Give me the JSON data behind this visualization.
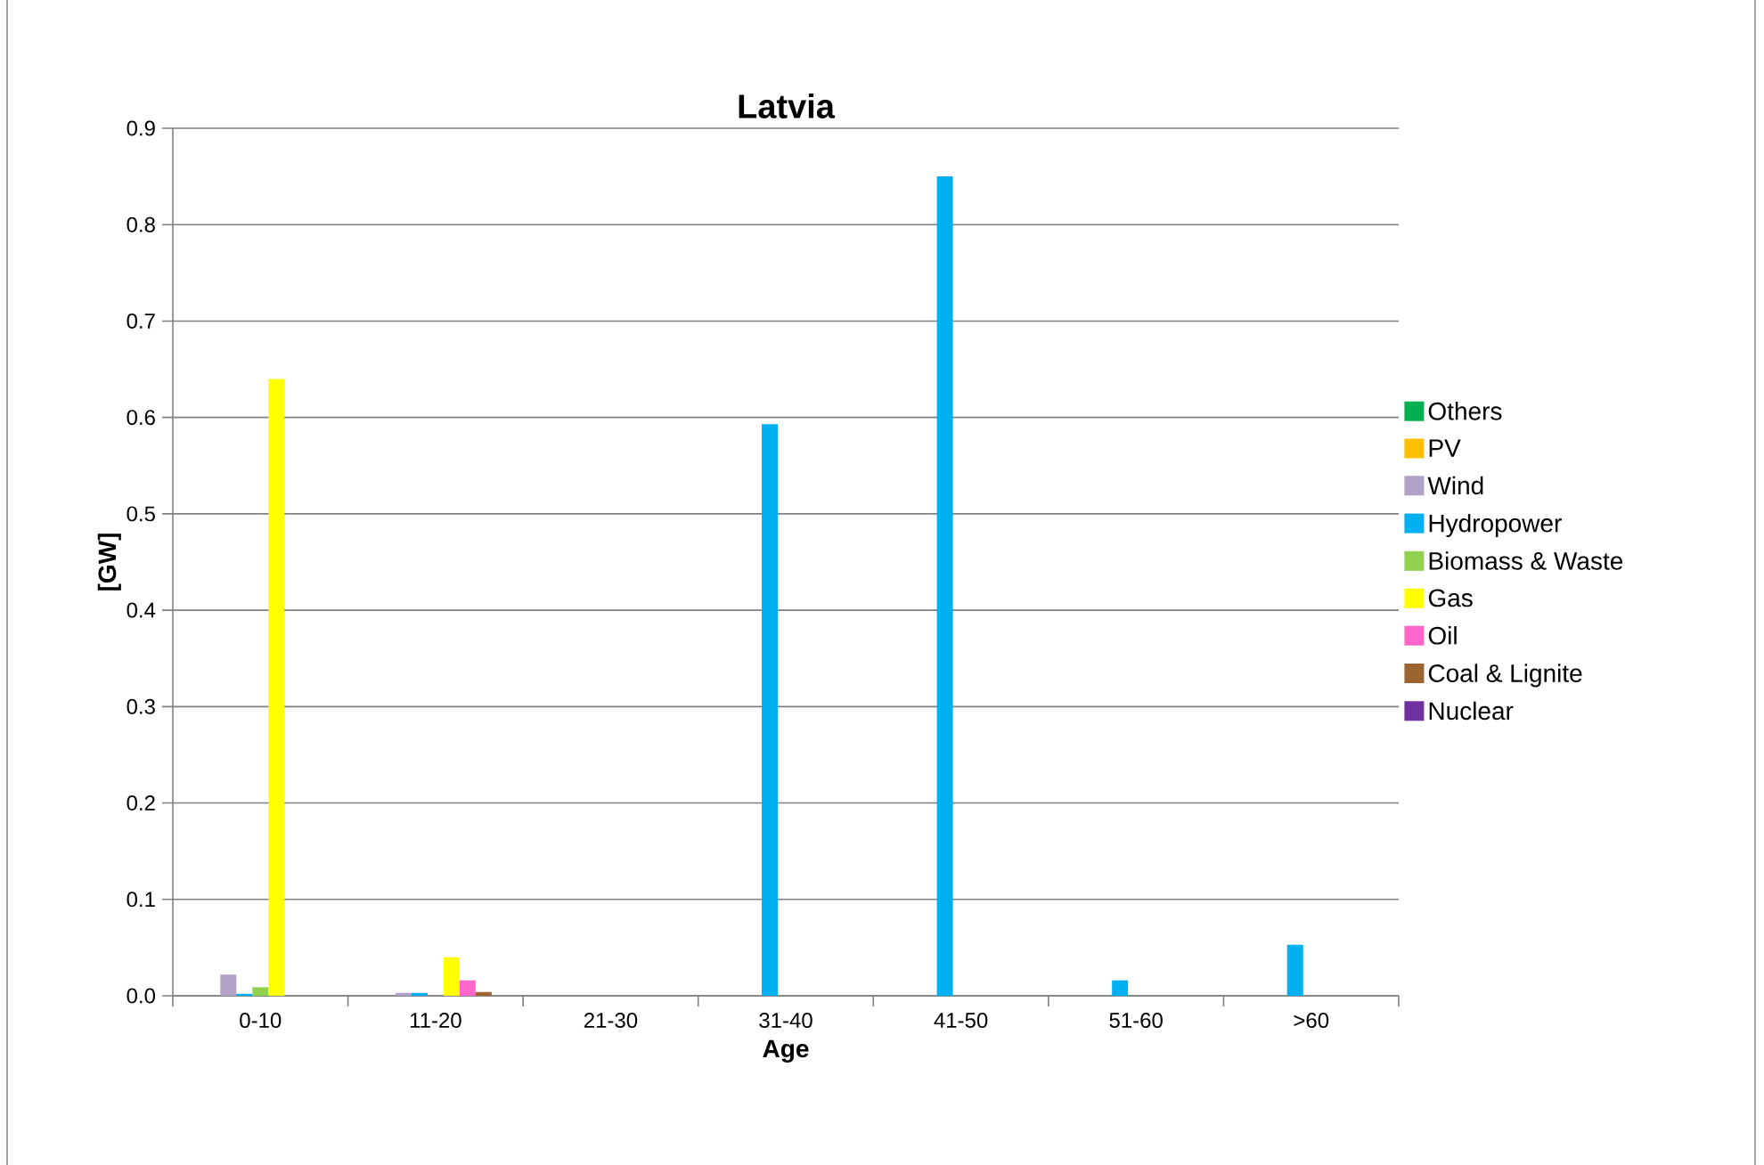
{
  "chart_data": {
    "type": "bar",
    "title": "Latvia",
    "xlabel": "Age",
    "ylabel": "[GW]",
    "categories": [
      "0-10",
      "11-20",
      "21-30",
      "31-40",
      "41-50",
      "51-60",
      ">60"
    ],
    "series": [
      {
        "name": "Others",
        "color": "#00b050",
        "values": [
          null,
          null,
          null,
          null,
          null,
          null,
          null
        ]
      },
      {
        "name": "PV",
        "color": "#ffc000",
        "values": [
          null,
          null,
          null,
          null,
          null,
          null,
          null
        ]
      },
      {
        "name": "Wind",
        "color": "#b3a2c7",
        "values": [
          0.022,
          0.003,
          null,
          null,
          null,
          null,
          null
        ]
      },
      {
        "name": "Hydropower",
        "color": "#00b0f0",
        "values": [
          0.002,
          0.003,
          null,
          0.593,
          0.85,
          0.016,
          0.053
        ]
      },
      {
        "name": "Biomass & Waste",
        "color": "#92d050",
        "values": [
          0.009,
          null,
          null,
          null,
          null,
          null,
          null
        ]
      },
      {
        "name": "Gas",
        "color": "#ffff00",
        "values": [
          0.64,
          0.04,
          null,
          null,
          null,
          null,
          null
        ]
      },
      {
        "name": "Oil",
        "color": "#ff66cc",
        "values": [
          null,
          0.016,
          null,
          null,
          null,
          null,
          null
        ]
      },
      {
        "name": "Coal & Lignite",
        "color": "#9c6430",
        "values": [
          null,
          0.004,
          null,
          null,
          null,
          null,
          null
        ]
      },
      {
        "name": "Nuclear",
        "color": "#7030a0",
        "values": [
          null,
          null,
          null,
          null,
          null,
          null,
          null
        ]
      }
    ],
    "ylim": [
      0,
      0.9
    ],
    "yticks": [
      {
        "value": 0,
        "label": "0.0"
      },
      0.1,
      0.2,
      0.3,
      0.4,
      0.5,
      0.6,
      0.7,
      0.8,
      0.9
    ],
    "grid": "y",
    "legend": "right"
  }
}
